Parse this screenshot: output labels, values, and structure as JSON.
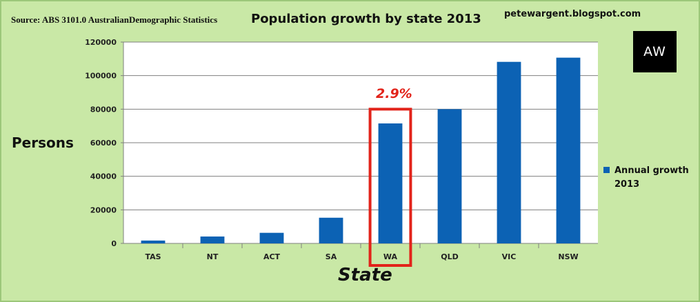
{
  "header": {
    "source": "Source: ABS 3101.0 AustralianDemographic Statistics",
    "blog": "petewargent.blogspot.com",
    "logo_text": "AW"
  },
  "colors": {
    "background": "#c9e8a6",
    "plot_area": "#ffffff",
    "bar": "#0c62b4",
    "highlight": "#e2231a",
    "gridline": "#7f7f7f"
  },
  "chart_data": {
    "type": "bar",
    "title": "Population growth by state 2013",
    "xlabel": "State",
    "ylabel": "Persons",
    "categories": [
      "TAS",
      "NT",
      "ACT",
      "SA",
      "WA",
      "QLD",
      "VIC",
      "NSW"
    ],
    "series": [
      {
        "name": "Annual growth 2013",
        "values": [
          1700,
          4100,
          6300,
          15300,
          71500,
          80000,
          108200,
          110700
        ]
      }
    ],
    "ylim": [
      0,
      120000
    ],
    "yticks": [
      0,
      20000,
      40000,
      60000,
      80000,
      100000,
      120000
    ],
    "ytick_labels": [
      "0",
      "20000",
      "40000",
      "60000",
      "80000",
      "100000",
      "120000"
    ],
    "grid": true,
    "legend": {
      "position": "right",
      "label": "Annual growth 2013"
    },
    "annotation": {
      "category": "WA",
      "text": "2.9%"
    }
  }
}
